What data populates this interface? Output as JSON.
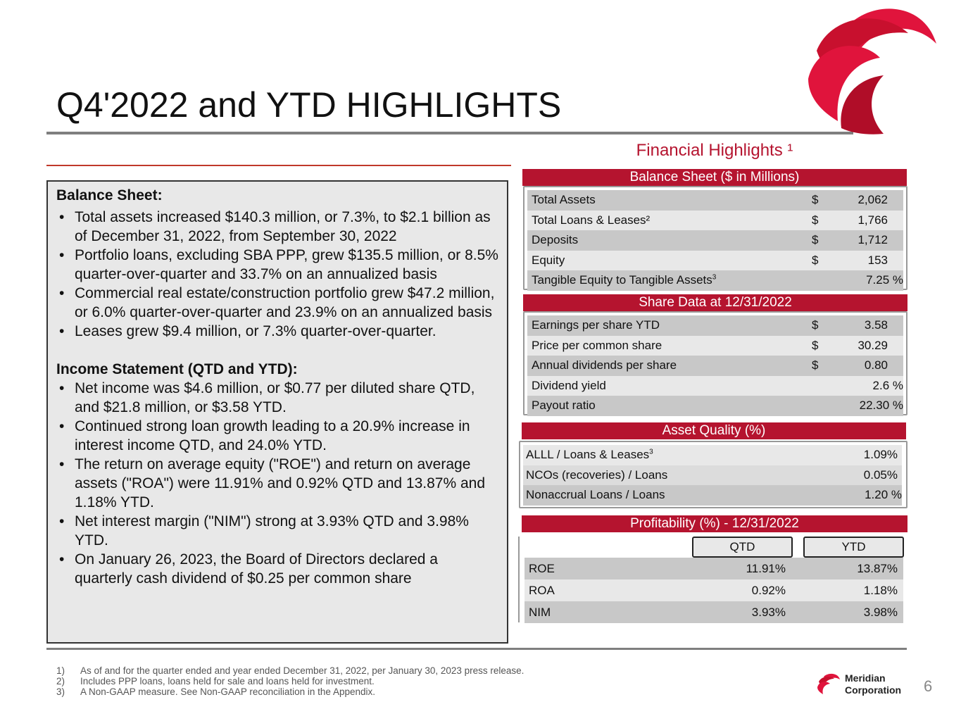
{
  "title": "Q4'2022 and YTD HIGHLIGHTS",
  "financial_highlights_title": "Financial Highlights ¹",
  "left": {
    "balance_heading": "Balance Sheet:",
    "balance_bullets": [
      "Total assets increased $140.3 million, or 7.3%, to $2.1 billion as of December 31, 2022, from September 30, 2022",
      "Portfolio loans, excluding SBA PPP, grew $135.5 million, or 8.5% quarter-over-quarter and 33.7% on an annualized basis",
      "Commercial real estate/construction portfolio grew $47.2 million, or 6.0% quarter-over-quarter and 23.9% on an annualized basis",
      "Leases grew $9.4 million, or 7.3% quarter-over-quarter."
    ],
    "income_heading": "Income Statement (QTD and YTD):",
    "income_bullets": [
      "Net income was $4.6 million, or $0.77 per diluted share QTD, and $21.8 million, or $3.58 YTD.",
      "Continued strong loan growth leading to a 20.9% increase in interest income QTD, and 24.0% YTD.",
      "The return on average equity (\"ROE\") and return on average assets (\"ROA\") were 11.91% and 0.92% QTD and 13.87% and 1.18% YTD.",
      "Net interest margin (\"NIM\") strong at 3.93% QTD and 3.98% YTD.",
      "On January 26, 2023, the Board of Directors declared a quarterly cash dividend of $0.25 per common share"
    ]
  },
  "balance_sheet": {
    "header": "Balance Sheet ($ in Millions)",
    "rows": [
      {
        "label": "Total Assets",
        "cur": "$",
        "value": "2,062"
      },
      {
        "label": "Total Loans & Leases²",
        "cur": "$",
        "value": "1,766"
      },
      {
        "label": "Deposits",
        "cur": "$",
        "value": "1,712"
      },
      {
        "label": "Equity",
        "cur": "$",
        "value": "153"
      },
      {
        "label": "Tangible Equity to Tangible Assets",
        "sup": "3",
        "cur": "",
        "value": "7.25 %"
      }
    ]
  },
  "share_data": {
    "header": "Share Data at 12/31/2022",
    "rows": [
      {
        "label": "Earnings per share YTD",
        "cur": "$",
        "value": "3.58"
      },
      {
        "label": "Price per common share",
        "cur": "$",
        "value": "30.29"
      },
      {
        "label": "Annual dividends per share",
        "cur": "$",
        "value": "0.80"
      },
      {
        "label": "Dividend yield",
        "cur": "",
        "value": "2.6 %"
      },
      {
        "label": "Payout ratio",
        "cur": "",
        "value": "22.30 %"
      }
    ]
  },
  "asset_quality": {
    "header": "Asset Quality (%)",
    "rows": [
      {
        "label": "ALLL / Loans & Leases",
        "sup": "3",
        "value": "1.09%"
      },
      {
        "label": "NCOs (recoveries) / Loans",
        "value": "0.05%"
      },
      {
        "label": "Nonaccrual Loans / Loans",
        "value": "1.20 %"
      }
    ]
  },
  "profitability": {
    "header": "Profitability (%) - 12/31/2022",
    "col_qtd": "QTD",
    "col_ytd": "YTD",
    "rows": [
      {
        "label": "ROE",
        "qtd": "11.91%",
        "ytd": "13.87%"
      },
      {
        "label": "ROA",
        "qtd": "0.92%",
        "ytd": "1.18%"
      },
      {
        "label": "NIM",
        "qtd": "3.93%",
        "ytd": "3.98%"
      }
    ]
  },
  "footnotes": [
    {
      "n": "1)",
      "text": "As of and for the quarter ended and year ended  December 31, 2022, per January 30, 2023 press release."
    },
    {
      "n": "2)",
      "text": "Includes PPP loans, loans held for sale and loans held for investment."
    },
    {
      "n": "3)",
      "text": "A Non-GAAP measure. See Non-GAAP reconciliation in the Appendix."
    }
  ],
  "company": {
    "line1": "Meridian",
    "line2": "Corporation"
  },
  "page_number": "6",
  "colors": {
    "accent": "#b5142f",
    "logo_red": "#e0143c",
    "rule": "#7f7f7f"
  }
}
